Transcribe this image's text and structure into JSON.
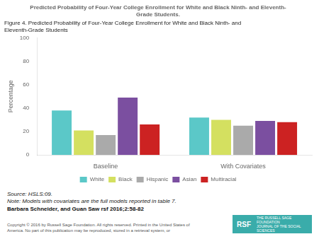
{
  "chart_data": {
    "type": "bar",
    "title": [
      "Predicted Probability of Four-Year College Enrollment for White and Black Ninth- and Eleventh-",
      "Grade Students."
    ],
    "subtitle": [
      "Figure 4. Predicted Probability of Four-Year College Enrollment for White and Black Ninth- and",
      "Eleventh-Grade Students"
    ],
    "categories": [
      "Baseline",
      "With Covariates"
    ],
    "series": [
      {
        "name": "White",
        "color": "#5bc8c8",
        "values": [
          38,
          32
        ]
      },
      {
        "name": "Black",
        "color": "#d4e060",
        "values": [
          21,
          30
        ]
      },
      {
        "name": "Hispanic",
        "color": "#aaaaaa",
        "values": [
          17,
          25
        ]
      },
      {
        "name": "Asian",
        "color": "#7b4fa0",
        "values": [
          49,
          29
        ]
      },
      {
        "name": "Multiracial",
        "color": "#cc2222",
        "values": [
          26,
          28
        ]
      }
    ],
    "ylabel": "Percentage",
    "ylim": [
      0,
      100
    ],
    "yticks": [
      0,
      20,
      40,
      60,
      80,
      100
    ],
    "grid": false,
    "legend": "bottom",
    "annotations": [
      {
        "text": "Source: HSLS:09."
      },
      {
        "text": "Note: Models with covariates are the full models reported in table 7."
      },
      {
        "text": "Barbara Schneider, and Guan Saw rsf 2016;2:58-82"
      },
      {
        "text": "RSF",
        "color": "#3aacaa"
      },
      {
        "text": "THE RUSSELL SAGE FOUNDATION\nJOURNAL OF THE SOCIAL SCIENCES"
      },
      {
        "text": "Copyright © 2016 by Russell Sage Foundation. All rights reserved. Printed in the United States of\nAmerica. No part of this publication may be reproduced, stored in a retrieval system, or"
      }
    ]
  }
}
